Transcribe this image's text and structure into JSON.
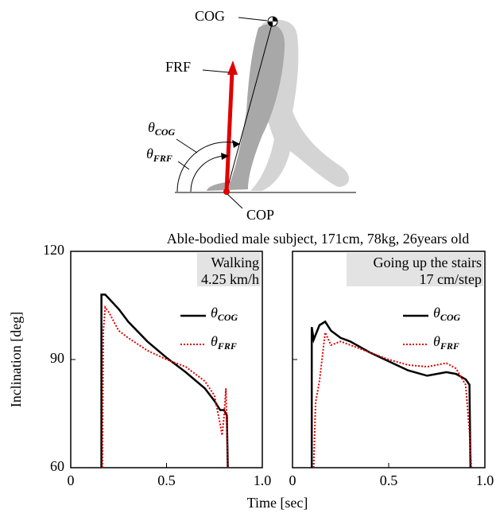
{
  "diagram": {
    "cog": "COG",
    "frf": "FRF",
    "theta_cog": "θCOG",
    "theta_frf": "θFRF",
    "cop": "COP"
  },
  "caption": "Able-bodied male subject, 171cm, 78kg, 26years old",
  "y_label": "Inclination [deg]",
  "x_label": "Time [sec]",
  "chart_data": [
    {
      "type": "line",
      "title": "Walking",
      "subtitle": "4.25 km/h",
      "xlim": [
        0,
        1
      ],
      "xticks": [
        0,
        0.5,
        {
          "value": 1,
          "label": "1.0"
        }
      ],
      "ylim": [
        60,
        120
      ],
      "yticks": [
        60,
        90,
        120
      ],
      "series": [
        {
          "name": "θCOG",
          "color": "#000000",
          "dash": "none",
          "x": [
            0.16,
            0.16,
            0.18,
            0.25,
            0.3,
            0.4,
            0.5,
            0.6,
            0.7,
            0.75,
            0.78,
            0.8,
            0.815,
            0.82
          ],
          "values": [
            60,
            108,
            108,
            104,
            100.5,
            95,
            90.5,
            86.5,
            82,
            78.5,
            76,
            76,
            74.5,
            60
          ]
        },
        {
          "name": "θFRF",
          "color": "#e00000",
          "dash": "2 2",
          "x": [
            0.165,
            0.17,
            0.18,
            0.2,
            0.25,
            0.3,
            0.4,
            0.5,
            0.6,
            0.7,
            0.75,
            0.78,
            0.79,
            0.8,
            0.81,
            0.815,
            0.82
          ],
          "values": [
            60,
            98,
            104.5,
            103,
            98,
            96,
            92.5,
            90,
            88,
            84,
            80,
            72,
            69,
            74,
            82,
            72,
            60
          ]
        }
      ]
    },
    {
      "type": "line",
      "title": "Going up the stairs",
      "subtitle": "17 cm/step",
      "xlim": [
        0,
        1
      ],
      "xticks": [
        0,
        0.5,
        {
          "value": 1,
          "label": "1.0"
        }
      ],
      "ylim": [
        60,
        120
      ],
      "yticks": [
        60,
        90,
        120
      ],
      "series": [
        {
          "name": "θCOG",
          "color": "#000000",
          "dash": "none",
          "x": [
            0.1,
            0.1,
            0.11,
            0.14,
            0.17,
            0.2,
            0.25,
            0.3,
            0.4,
            0.5,
            0.6,
            0.7,
            0.8,
            0.85,
            0.9,
            0.92,
            0.925
          ],
          "values": [
            60,
            99,
            95.5,
            99.5,
            100.5,
            98,
            96,
            95,
            92,
            89.5,
            87,
            85.5,
            86.5,
            86,
            84.5,
            83,
            60
          ]
        },
        {
          "name": "θFRF",
          "color": "#e00000",
          "dash": "2 2",
          "x": [
            0.11,
            0.12,
            0.14,
            0.17,
            0.2,
            0.25,
            0.4,
            0.5,
            0.6,
            0.7,
            0.8,
            0.85,
            0.9,
            0.92,
            0.93
          ],
          "values": [
            60,
            78,
            84,
            97.5,
            94,
            95,
            92,
            90,
            88.5,
            88,
            89,
            87.5,
            83,
            70,
            60
          ]
        }
      ]
    }
  ]
}
